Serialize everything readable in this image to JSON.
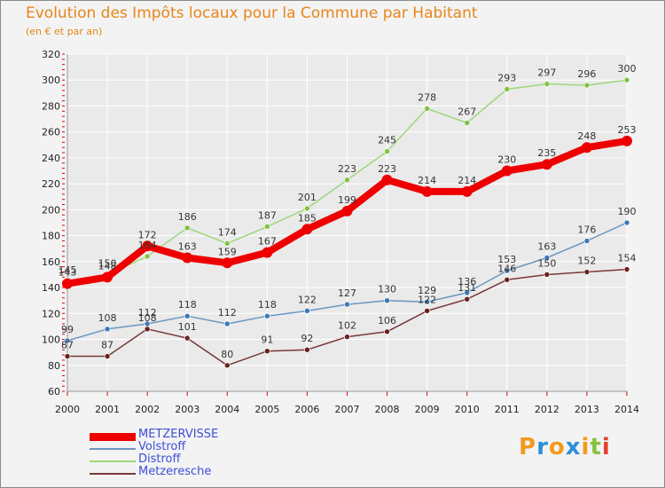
{
  "header": {
    "title": "Evolution des Impôts locaux pour la Commune par Habitant",
    "subtitle": "(en € et par an)"
  },
  "colors": {
    "title": "#e6861a",
    "legend_text": "#3d4fd6",
    "grid": "#ffffff",
    "axis_ticks": "#e00000"
  },
  "logo": {
    "letters": [
      "P",
      "r",
      "o",
      "x",
      "i",
      "t",
      "i"
    ],
    "colors": [
      "#f29a1e",
      "#2d8fd6",
      "#f29a1e",
      "#2d8fd6",
      "#f29a1e",
      "#89c13d",
      "#e73f2f"
    ]
  },
  "chart_data": {
    "type": "line",
    "title": "Evolution des Impôts locaux pour la Commune par Habitant",
    "subtitle": "(en € et par an)",
    "xlabel": "",
    "ylabel": "",
    "x": [
      2000,
      2001,
      2002,
      2003,
      2004,
      2005,
      2006,
      2007,
      2008,
      2009,
      2010,
      2011,
      2012,
      2013,
      2014
    ],
    "ylim": [
      60,
      320
    ],
    "yticks": [
      60,
      80,
      100,
      120,
      140,
      160,
      180,
      200,
      220,
      240,
      260,
      280,
      300,
      320
    ],
    "grid": true,
    "legend_position": "bottom-left",
    "series": [
      {
        "name": "METZERVISSE",
        "color": "#ee0000",
        "point_color": "#ee0000",
        "width": 8,
        "values": [
          143,
          148,
          172,
          163,
          159,
          167,
          185,
          199,
          223,
          214,
          214,
          230,
          235,
          248,
          253
        ]
      },
      {
        "name": "Volstroff",
        "color": "#6a96c2",
        "point_color": "#3a79b8",
        "width": 1.5,
        "values": [
          99,
          108,
          112,
          118,
          112,
          118,
          122,
          127,
          130,
          129,
          136,
          153,
          163,
          176,
          190
        ]
      },
      {
        "name": "Distroff",
        "color": "#9fd67a",
        "point_color": "#7fc23e",
        "width": 1.5,
        "values": [
          145,
          150,
          164,
          186,
          174,
          187,
          201,
          223,
          245,
          278,
          267,
          293,
          297,
          296,
          300
        ]
      },
      {
        "name": "Metzeresche",
        "color": "#7a3838",
        "point_color": "#6a1f1f",
        "width": 1.5,
        "values": [
          87,
          87,
          108,
          101,
          80,
          91,
          92,
          102,
          106,
          122,
          131,
          146,
          150,
          152,
          154
        ]
      }
    ],
    "data_labels": [
      {
        "series": 0,
        "labels": [
          "143",
          "148",
          "172",
          "163",
          "159",
          "167",
          "185",
          "199",
          "223",
          "214",
          "214",
          "230",
          "235",
          "248",
          "253"
        ]
      },
      {
        "series": 1,
        "labels": [
          "99",
          "108",
          "112",
          "118",
          "112",
          "118",
          "122",
          "127",
          "130",
          "129",
          "136",
          "153",
          "163",
          "176",
          "190"
        ]
      },
      {
        "series": 2,
        "labels": [
          "145",
          "150",
          "164",
          "186",
          "174",
          "187",
          "201",
          "223",
          "245",
          "278",
          "267",
          "293",
          "297",
          "296",
          "300"
        ]
      },
      {
        "series": 3,
        "labels": [
          "87",
          "87",
          "108",
          "101",
          "80",
          "91",
          "92",
          "102",
          "106",
          "122",
          "131",
          "146",
          "150",
          "152",
          "154"
        ]
      }
    ]
  }
}
